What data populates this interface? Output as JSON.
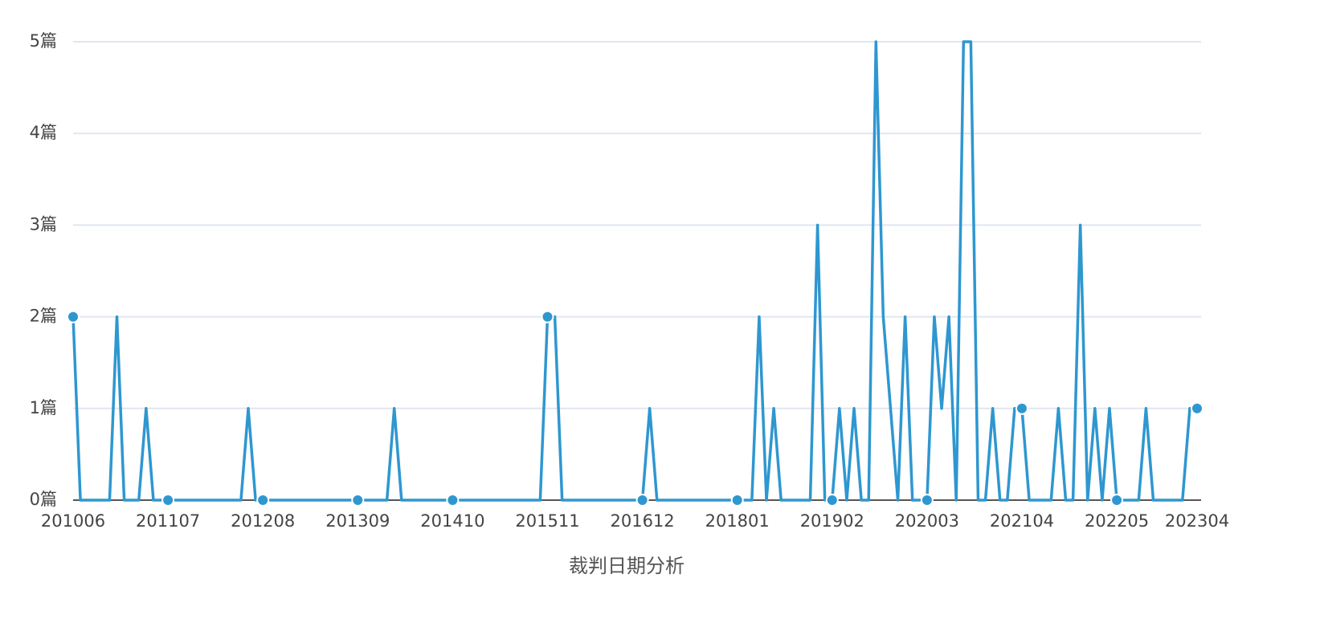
{
  "chart_data": {
    "type": "line",
    "x_label": "裁判日期分析",
    "color": "#2e97d0",
    "categories": [
      "201006",
      null,
      null,
      null,
      null,
      null,
      null,
      null,
      null,
      null,
      null,
      null,
      null,
      "201107",
      null,
      null,
      null,
      null,
      null,
      null,
      null,
      null,
      null,
      null,
      null,
      null,
      "201208",
      null,
      null,
      null,
      null,
      null,
      null,
      null,
      null,
      null,
      null,
      null,
      null,
      "201309",
      null,
      null,
      null,
      null,
      null,
      null,
      null,
      null,
      null,
      null,
      null,
      null,
      "201410",
      null,
      null,
      null,
      null,
      null,
      null,
      null,
      null,
      null,
      null,
      null,
      null,
      "201511",
      null,
      null,
      null,
      null,
      null,
      null,
      null,
      null,
      null,
      null,
      null,
      null,
      "201612",
      null,
      null,
      null,
      null,
      null,
      null,
      null,
      null,
      null,
      null,
      null,
      null,
      "201801",
      null,
      null,
      null,
      null,
      null,
      null,
      null,
      null,
      null,
      null,
      null,
      null,
      "201902",
      null,
      null,
      null,
      null,
      null,
      null,
      null,
      null,
      null,
      null,
      null,
      null,
      "202003",
      null,
      null,
      null,
      null,
      null,
      null,
      null,
      null,
      null,
      null,
      null,
      null,
      "202104",
      null,
      null,
      null,
      null,
      null,
      null,
      null,
      null,
      null,
      null,
      null,
      null,
      "202205",
      null,
      null,
      null,
      null,
      null,
      null,
      null,
      null,
      null,
      null,
      "202304"
    ],
    "values": [
      2,
      0,
      0,
      0,
      0,
      0,
      2,
      0,
      0,
      0,
      1,
      0,
      0,
      0,
      0,
      0,
      0,
      0,
      0,
      0,
      0,
      0,
      0,
      0,
      1,
      0,
      0,
      0,
      0,
      0,
      0,
      0,
      0,
      0,
      0,
      0,
      0,
      0,
      0,
      0,
      0,
      0,
      0,
      0,
      1,
      0,
      0,
      0,
      0,
      0,
      0,
      0,
      0,
      0,
      0,
      0,
      0,
      0,
      0,
      0,
      0,
      0,
      0,
      0,
      0,
      2,
      2,
      0,
      0,
      0,
      0,
      0,
      0,
      0,
      0,
      0,
      0,
      0,
      0,
      1,
      0,
      0,
      0,
      0,
      0,
      0,
      0,
      0,
      0,
      0,
      0,
      0,
      0,
      0,
      2,
      0,
      1,
      0,
      0,
      0,
      0,
      0,
      3,
      0,
      0,
      1,
      0,
      1,
      0,
      0,
      5,
      2,
      1,
      0,
      2,
      0,
      0,
      0,
      2,
      1,
      2,
      0,
      5,
      5,
      0,
      0,
      1,
      0,
      0,
      1,
      1,
      0,
      0,
      0,
      0,
      1,
      0,
      0,
      3,
      0,
      1,
      0,
      1,
      0,
      0,
      0,
      0,
      1,
      0,
      0,
      0,
      0,
      0,
      1,
      1
    ],
    "ylim": [
      0,
      5
    ],
    "yticks": [
      {
        "value": 0,
        "label": "0篇"
      },
      {
        "value": 1,
        "label": "1篇"
      },
      {
        "value": 2,
        "label": "2篇"
      },
      {
        "value": 3,
        "label": "3篇"
      },
      {
        "value": 4,
        "label": "4篇"
      },
      {
        "value": 5,
        "label": "5篇"
      }
    ],
    "grid": true
  }
}
